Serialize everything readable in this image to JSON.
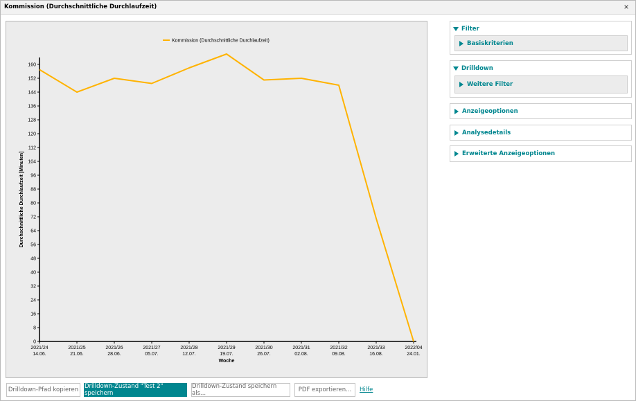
{
  "window": {
    "title": "Kommission (Durchschnittliche Durchlaufzeit)",
    "close_glyph": "×"
  },
  "panels": {
    "filter": {
      "label": "Filter",
      "sub_label": "Basiskriterien"
    },
    "drilldown": {
      "label": "Drilldown",
      "sub_label": "Weitere Filter"
    },
    "anzeigeoptionen": {
      "label": "Anzeigeoptionen"
    },
    "analysedetails": {
      "label": "Analysedetails"
    },
    "erweitert": {
      "label": "Erweiterte Anzeigeoptionen"
    }
  },
  "buttons": {
    "copy_path": "Drilldown-Pfad kopieren",
    "save_state": "Drilldown-Zustand \"Test 2\" speichern",
    "save_as": "Drilldown-Zustand speichern als...",
    "export_pdf": "PDF exportieren...",
    "help": "Hilfe"
  },
  "colors": {
    "accent": "#00868f",
    "series": "#ffb300",
    "plot_bg": "#ececec"
  },
  "chart_data": {
    "type": "line",
    "xlabel": "Woche",
    "ylabel": "Durchschnittliche Durchlaufzeit [Minuten]",
    "ylim": [
      0,
      164
    ],
    "yticks": [
      0,
      8,
      16,
      24,
      32,
      40,
      48,
      56,
      64,
      72,
      80,
      88,
      96,
      104,
      112,
      120,
      128,
      136,
      144,
      152,
      160
    ],
    "categories": [
      [
        "2021/24",
        "14.06."
      ],
      [
        "2021/25",
        "21.06."
      ],
      [
        "2021/26",
        "28.06."
      ],
      [
        "2021/27",
        "05.07."
      ],
      [
        "2021/28",
        "12.07."
      ],
      [
        "2021/29",
        "19.07."
      ],
      [
        "2021/30",
        "26.07."
      ],
      [
        "2021/31",
        "02.08."
      ],
      [
        "2021/32",
        "09.08."
      ],
      [
        "2021/33",
        "16.08."
      ],
      [
        "2022/04",
        "24.01."
      ]
    ],
    "legend": "top-center",
    "grid": false,
    "series": [
      {
        "name": "Kommission (Durchschnittliche Durchlaufzeit)",
        "values": [
          157,
          144,
          152,
          149,
          158,
          166,
          151,
          152,
          148,
          71,
          0
        ]
      }
    ]
  }
}
